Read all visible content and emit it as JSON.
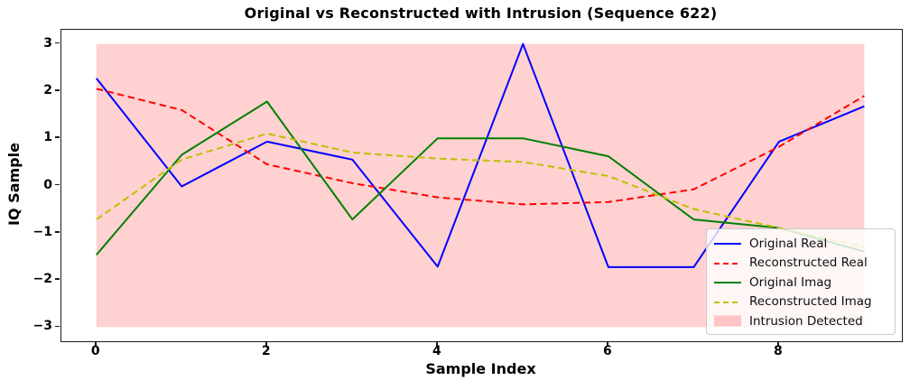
{
  "figure": {
    "title": "Original vs Reconstructed with Intrusion (Sequence 622)",
    "xlabel": "Sample Index",
    "ylabel": "IQ Sample"
  },
  "axes": {
    "x_tick_labels": [
      "0",
      "2",
      "4",
      "6",
      "8"
    ],
    "y_tick_labels": [
      "3",
      "2",
      "1",
      "0",
      "−1",
      "−2",
      "−3"
    ]
  },
  "legend": {
    "items": [
      {
        "label": "Original Real",
        "type": "line",
        "style": "solid",
        "color": "#0000ff"
      },
      {
        "label": "Reconstructed Real",
        "type": "line",
        "style": "dashed",
        "color": "#ff0000"
      },
      {
        "label": "Original Imag",
        "type": "line",
        "style": "solid",
        "color": "#008000"
      },
      {
        "label": "Reconstructed Imag",
        "type": "line",
        "style": "dashed",
        "color": "#bfbf00"
      },
      {
        "label": "Intrusion Detected",
        "type": "patch",
        "color": "#ff0000",
        "alpha": 0.2
      }
    ]
  },
  "chart_data": {
    "type": "line",
    "title": "Original vs Reconstructed with Intrusion (Sequence 622)",
    "xlabel": "Sample Index",
    "ylabel": "IQ Sample",
    "x": [
      0,
      1,
      2,
      3,
      4,
      5,
      6,
      7,
      8,
      9
    ],
    "xlim": [
      -0.41,
      9.44
    ],
    "ylim": [
      -3.3,
      3.3
    ],
    "x_tick_values": [
      0,
      2,
      4,
      6,
      8
    ],
    "y_tick_values": [
      3,
      2,
      1,
      0,
      -1,
      -2,
      -3
    ],
    "grid": false,
    "legend_position": "lower right",
    "series": [
      {
        "name": "Original Real",
        "color": "#0000ff",
        "style": "solid",
        "values": [
          2.27,
          -0.02,
          0.93,
          0.55,
          -1.72,
          3.0,
          -1.73,
          -1.73,
          0.93,
          1.68
        ]
      },
      {
        "name": "Reconstructed Real",
        "color": "#ff0000",
        "style": "dashed",
        "values": [
          2.05,
          1.6,
          0.45,
          0.05,
          -0.25,
          -0.4,
          -0.35,
          -0.08,
          0.82,
          1.9
        ]
      },
      {
        "name": "Original Imag",
        "color": "#008000",
        "style": "solid",
        "values": [
          -1.47,
          0.65,
          1.78,
          -0.72,
          1.0,
          1.0,
          0.62,
          -0.72,
          -0.9,
          -1.4
        ]
      },
      {
        "name": "Reconstructed Imag",
        "color": "#bfbf00",
        "style": "dashed",
        "values": [
          -0.72,
          0.55,
          1.1,
          0.7,
          0.57,
          0.5,
          0.2,
          -0.5,
          -0.9,
          -1.3
        ]
      }
    ],
    "intrusion_region": {
      "label": "Intrusion Detected",
      "x_start": 0,
      "x_end": 9,
      "y_min": -3,
      "y_max": 3,
      "color": "#ff0000",
      "alpha": 0.2
    }
  }
}
